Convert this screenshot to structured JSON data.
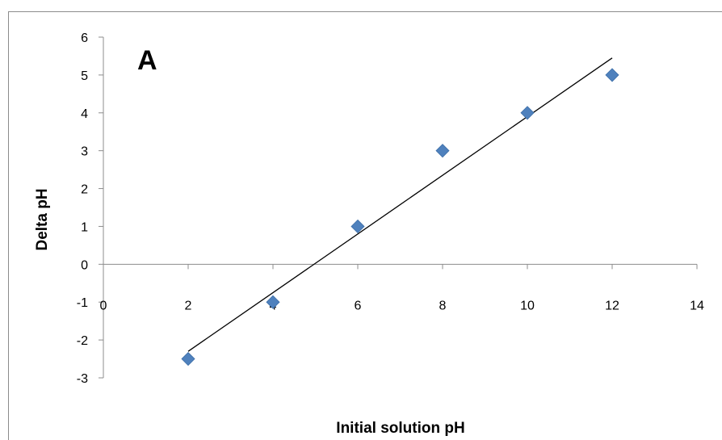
{
  "chart_data": {
    "type": "scatter",
    "panel_label": "A",
    "xlabel": "Initial solution pH",
    "ylabel": "Delta pH",
    "xlim": [
      0,
      14
    ],
    "ylim": [
      -3,
      6
    ],
    "x_ticks": [
      0,
      2,
      4,
      6,
      8,
      10,
      12,
      14
    ],
    "y_ticks": [
      -3,
      -2,
      -1,
      0,
      1,
      2,
      3,
      4,
      5,
      6
    ],
    "grid": false,
    "legend": "none",
    "series": [
      {
        "x": [
          2,
          4,
          6,
          8,
          10,
          12
        ],
        "y": [
          -2.5,
          -1,
          1,
          3,
          4,
          5
        ],
        "marker": "diamond",
        "color": "#4f81bd"
      }
    ],
    "trendline": {
      "type": "linear",
      "x_start": 2,
      "x_end": 12,
      "y_start": -2.3,
      "y_end": 5.45,
      "color": "#000000"
    }
  }
}
